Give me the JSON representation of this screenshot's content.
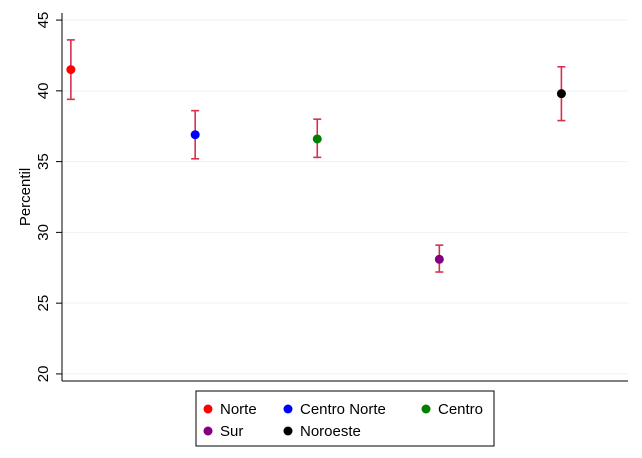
{
  "chart_data": {
    "type": "scatter",
    "title": "",
    "xlabel": "",
    "ylabel": "Percentil",
    "ylim": [
      19.5,
      45.5
    ],
    "yticks": [
      20,
      25,
      30,
      35,
      40,
      45
    ],
    "xlim": [
      0.5,
      5.6
    ],
    "grid": true,
    "legend_position": "bottom",
    "series": [
      {
        "name": "Norte",
        "color": "#ff0000",
        "x": 0.58,
        "y": 41.5,
        "ci_low": 39.4,
        "ci_high": 43.6
      },
      {
        "name": "Centro Norte",
        "color": "#0000ff",
        "x": 1.7,
        "y": 36.9,
        "ci_low": 35.2,
        "ci_high": 38.6
      },
      {
        "name": "Centro",
        "color": "#007f00",
        "x": 2.8,
        "y": 36.6,
        "ci_low": 35.3,
        "ci_high": 38.0
      },
      {
        "name": "Sur",
        "color": "#800080",
        "x": 3.9,
        "y": 28.1,
        "ci_low": 27.2,
        "ci_high": 29.1
      },
      {
        "name": "Noroeste",
        "color": "#000000",
        "x": 5.0,
        "y": 39.8,
        "ci_low": 37.9,
        "ci_high": 41.7
      }
    ],
    "errorbar_color": "#d7304f"
  }
}
